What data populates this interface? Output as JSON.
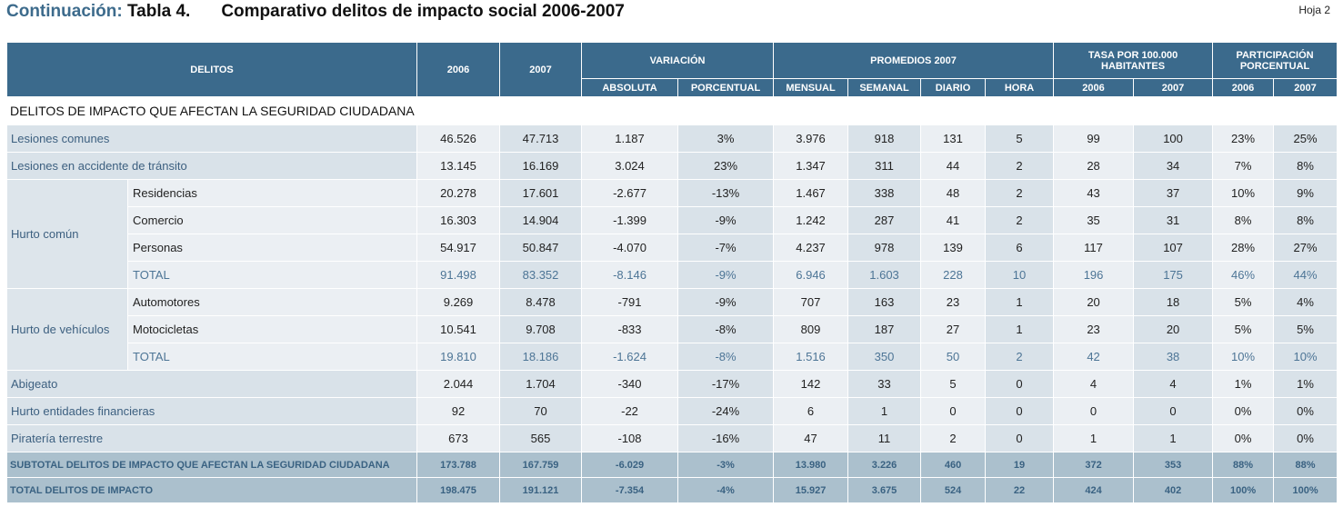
{
  "title": {
    "prefix": "Continuación:",
    "table_num": "Tabla 4.",
    "text": "Comparativo delitos de impacto social 2006-2007"
  },
  "sheet": "Hoja 2",
  "header": {
    "delitos": "DELITOS",
    "y2006": "2006",
    "y2007": "2007",
    "variacion": "VARIACIÓN",
    "absoluta": "ABSOLUTA",
    "porcentual": "PORCENTUAL",
    "promedios": "PROMEDIOS 2007",
    "mensual": "MENSUAL",
    "semanal": "SEMANAL",
    "diario": "DIARIO",
    "hora": "HORA",
    "tasa": "TASA POR 100.000 HABITANTES",
    "tasa2006": "2006",
    "tasa2007": "2007",
    "participacion": "PARTICIPACIÓN PORCENTUAL",
    "part2006": "2006",
    "part2007": "2007"
  },
  "section": "DELITOS DE IMPACTO QUE AFECTAN LA SEGURIDAD CIUDADANA",
  "rows": [
    {
      "label": "Lesiones comunes",
      "values": [
        "46.526",
        "47.713",
        "1.187",
        "3%",
        "3.976",
        "918",
        "131",
        "5",
        "99",
        "100",
        "23%",
        "25%"
      ]
    },
    {
      "label": "Lesiones en accidente de tránsito",
      "values": [
        "13.145",
        "16.169",
        "3.024",
        "23%",
        "1.347",
        "311",
        "44",
        "2",
        "28",
        "34",
        "7%",
        "8%"
      ]
    },
    {
      "group": "Hurto común",
      "label": "Residencias",
      "values": [
        "20.278",
        "17.601",
        "-2.677",
        "-13%",
        "1.467",
        "338",
        "48",
        "2",
        "43",
        "37",
        "10%",
        "9%"
      ]
    },
    {
      "group": "Hurto común",
      "label": "Comercio",
      "values": [
        "16.303",
        "14.904",
        "-1.399",
        "-9%",
        "1.242",
        "287",
        "41",
        "2",
        "35",
        "31",
        "8%",
        "8%"
      ]
    },
    {
      "group": "Hurto común",
      "label": "Personas",
      "values": [
        "54.917",
        "50.847",
        "-4.070",
        "-7%",
        "4.237",
        "978",
        "139",
        "6",
        "117",
        "107",
        "28%",
        "27%"
      ]
    },
    {
      "group": "Hurto común",
      "label": "TOTAL",
      "total": true,
      "values": [
        "91.498",
        "83.352",
        "-8.146",
        "-9%",
        "6.946",
        "1.603",
        "228",
        "10",
        "196",
        "175",
        "46%",
        "44%"
      ]
    },
    {
      "group": "Hurto de vehículos",
      "label": "Automotores",
      "values": [
        "9.269",
        "8.478",
        "-791",
        "-9%",
        "707",
        "163",
        "23",
        "1",
        "20",
        "18",
        "5%",
        "4%"
      ]
    },
    {
      "group": "Hurto de vehículos",
      "label": "Motocicletas",
      "values": [
        "10.541",
        "9.708",
        "-833",
        "-8%",
        "809",
        "187",
        "27",
        "1",
        "23",
        "20",
        "5%",
        "5%"
      ]
    },
    {
      "group": "Hurto de vehículos",
      "label": "TOTAL",
      "total": true,
      "values": [
        "19.810",
        "18.186",
        "-1.624",
        "-8%",
        "1.516",
        "350",
        "50",
        "2",
        "42",
        "38",
        "10%",
        "10%"
      ]
    },
    {
      "label": "Abigeato",
      "values": [
        "2.044",
        "1.704",
        "-340",
        "-17%",
        "142",
        "33",
        "5",
        "0",
        "4",
        "4",
        "1%",
        "1%"
      ]
    },
    {
      "label": "Hurto entidades financieras",
      "values": [
        "92",
        "70",
        "-22",
        "-24%",
        "6",
        "1",
        "0",
        "0",
        "0",
        "0",
        "0%",
        "0%"
      ]
    },
    {
      "label": "Piratería terrestre",
      "values": [
        "673",
        "565",
        "-108",
        "-16%",
        "47",
        "11",
        "2",
        "0",
        "1",
        "1",
        "0%",
        "0%"
      ]
    }
  ],
  "summary": [
    {
      "label": "SUBTOTAL DELITOS DE IMPACTO QUE AFECTAN LA SEGURIDAD CIUDADANA",
      "values": [
        "173.788",
        "167.759",
        "-6.029",
        "-3%",
        "13.980",
        "3.226",
        "460",
        "19",
        "372",
        "353",
        "88%",
        "88%"
      ]
    },
    {
      "label": "TOTAL DELITOS DE IMPACTO",
      "values": [
        "198.475",
        "191.121",
        "-7.354",
        "-4%",
        "15.927",
        "3.675",
        "524",
        "22",
        "424",
        "402",
        "100%",
        "100%"
      ]
    }
  ],
  "colors": {
    "header": "#3b6a8c",
    "cell_light": "#ebeff3",
    "cell_dark": "#d9e2e9",
    "summary": "#abc0cd",
    "accent_text": "#3d6b8c"
  }
}
